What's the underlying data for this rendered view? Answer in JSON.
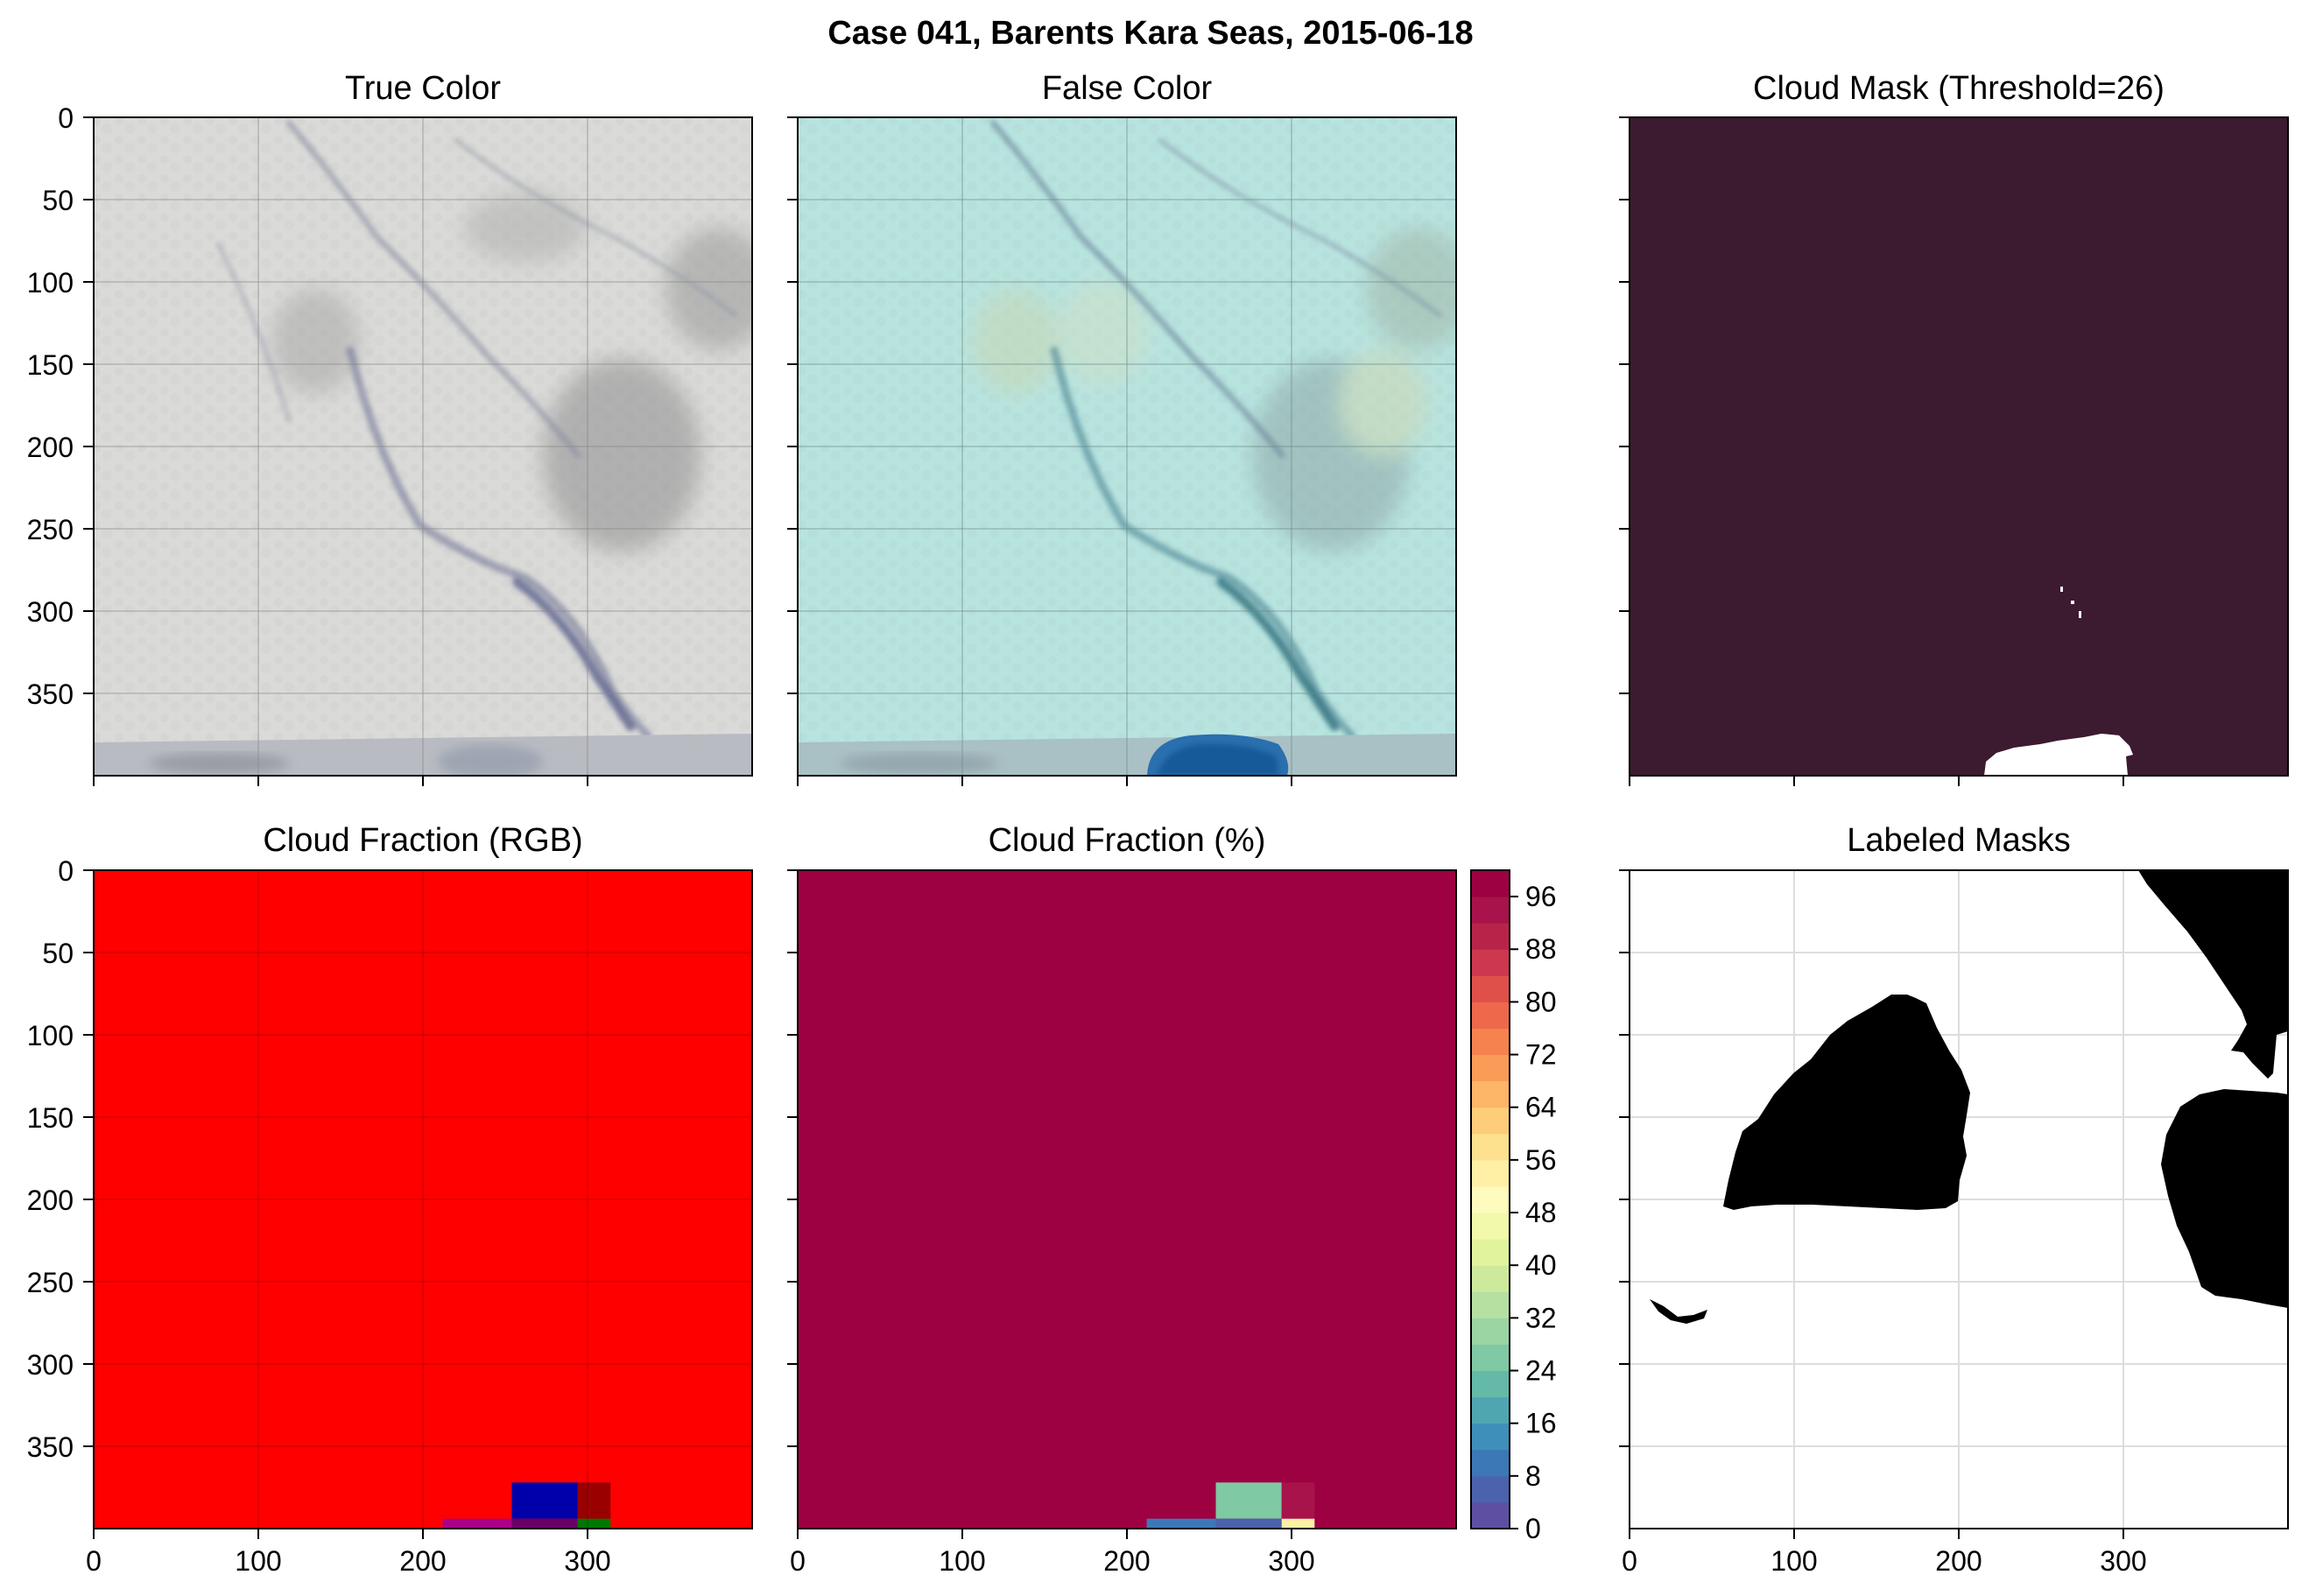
{
  "figure": {
    "suptitle": "Case 041, Barents Kara Seas, 2015-06-18"
  },
  "chart_data": [
    {
      "type": "image",
      "title": "True Color",
      "xlim": [
        0,
        400
      ],
      "ylim": [
        400,
        0
      ],
      "yticks": [
        0,
        50,
        100,
        150,
        200,
        250,
        300,
        350
      ],
      "xtick_labels_shown": false,
      "description_colors": {
        "ice": "#dcdcda",
        "water_blue": "#5a7fa0"
      }
    },
    {
      "type": "image",
      "title": "False Color",
      "xlim": [
        0,
        400
      ],
      "ylim": [
        400,
        0
      ],
      "xtick_labels_shown": false,
      "description_colors": {
        "ice": "#b9e6e0",
        "water_blue": "#1a5a99"
      }
    },
    {
      "type": "heatmap",
      "title": "Cloud Mask (Threshold=26)",
      "xlim": [
        0,
        400
      ],
      "ylim": [
        400,
        0
      ],
      "colors": {
        "cloud": "#3c1a30",
        "clear": "#ffffff"
      },
      "xtick_labels_shown": false
    },
    {
      "type": "heatmap",
      "title": "Cloud Fraction (RGB)",
      "xlim": [
        0,
        400
      ],
      "ylim": [
        400,
        0
      ],
      "yticks": [
        0,
        50,
        100,
        150,
        200,
        250,
        300,
        350
      ],
      "xticks": [
        0,
        100,
        200,
        300
      ],
      "background": "#ff0000",
      "cells": [
        {
          "x0": 254,
          "x1": 294,
          "y0": 372,
          "y1": 394,
          "color": "#0000aa"
        },
        {
          "x0": 294,
          "x1": 314,
          "y0": 372,
          "y1": 394,
          "color": "#990000"
        },
        {
          "x0": 212,
          "x1": 254,
          "y0": 394,
          "y1": 400,
          "color": "#aa0088"
        },
        {
          "x0": 254,
          "x1": 294,
          "y0": 394,
          "y1": 400,
          "color": "#6a0066"
        },
        {
          "x0": 294,
          "x1": 314,
          "y0": 394,
          "y1": 400,
          "color": "#007700"
        }
      ]
    },
    {
      "type": "heatmap",
      "title": "Cloud Fraction (%)",
      "xlim": [
        0,
        400
      ],
      "ylim": [
        400,
        0
      ],
      "xticks": [
        0,
        100,
        200,
        300
      ],
      "background_value": 100,
      "cells": [
        {
          "x0": 254,
          "x1": 294,
          "y0": 372,
          "y1": 394,
          "value": 24
        },
        {
          "x0": 294,
          "x1": 314,
          "y0": 372,
          "y1": 394,
          "value": 92
        },
        {
          "x0": 212,
          "x1": 254,
          "y0": 394,
          "y1": 400,
          "value": 10
        },
        {
          "x0": 254,
          "x1": 294,
          "y0": 394,
          "y1": 400,
          "value": 4
        },
        {
          "x0": 294,
          "x1": 314,
          "y0": 394,
          "y1": 400,
          "value": 54
        }
      ],
      "colorbar": {
        "range": [
          0,
          100
        ],
        "step": 4,
        "tick_labels": [
          "0",
          "8",
          "16",
          "24",
          "32",
          "40",
          "48",
          "56",
          "64",
          "72",
          "80",
          "88",
          "96"
        ],
        "colors": [
          "#5e4fa2",
          "#4b62ac",
          "#3d78b6",
          "#3e8fb9",
          "#4fa6b2",
          "#64b9a8",
          "#7fc9a4",
          "#9bd5a4",
          "#b5e0a2",
          "#cdea9c",
          "#e2f39e",
          "#f2f9ab",
          "#fdfbbd",
          "#fff0a6",
          "#fee18e",
          "#fdcd7a",
          "#fdb567",
          "#fa9c58",
          "#f68250",
          "#ee684b",
          "#e0504a",
          "#cd384e",
          "#b82449",
          "#a7134a",
          "#9e0142"
        ]
      }
    },
    {
      "type": "heatmap",
      "title": "Labeled Masks",
      "xlim": [
        0,
        400
      ],
      "ylim": [
        400,
        0
      ],
      "xticks": [
        0,
        100,
        200,
        300
      ],
      "yticks": [
        0,
        50,
        100,
        150,
        200,
        250,
        300,
        350
      ],
      "ytick_labels_shown": false,
      "colors": {
        "labeled": "#000000",
        "background": "#ffffff"
      }
    }
  ]
}
